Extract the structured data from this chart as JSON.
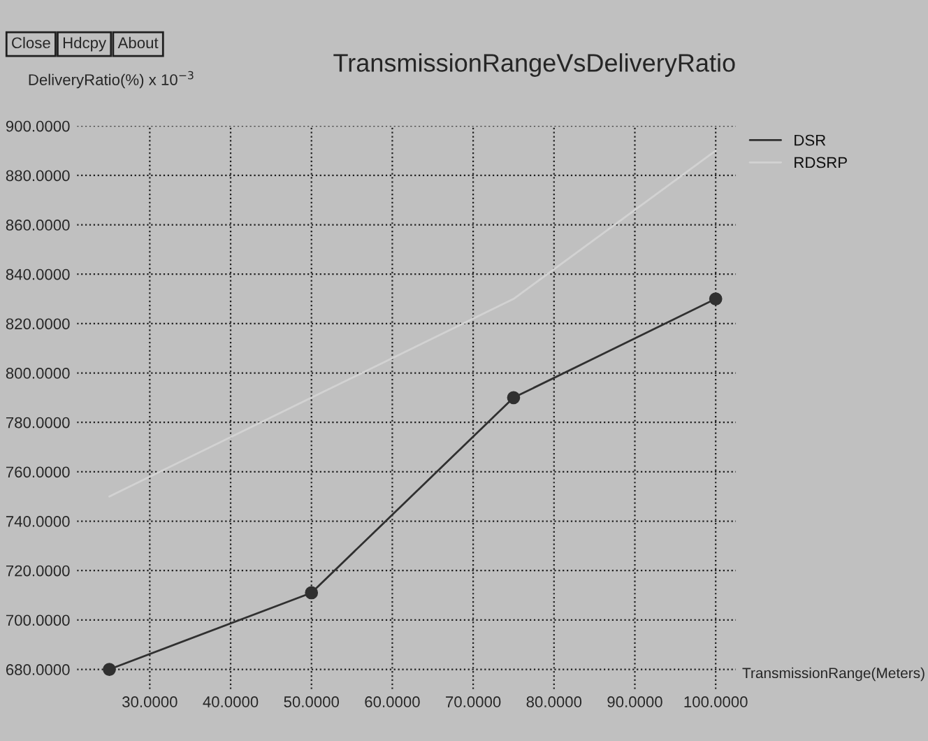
{
  "chart_data": {
    "type": "line",
    "title": "TransmissionRangeVsDeliveryRatio",
    "xlabel": "TransmissionRange(Meters)",
    "ylabel": "DeliveryRatio(%) x 10$^{−3}$",
    "annotations": [
      "Close",
      "Hdcpy",
      "About"
    ],
    "x": [
      25,
      50,
      75,
      100
    ],
    "series": [
      {
        "name": "DSR",
        "color": "#303030",
        "values": [
          680,
          711,
          790,
          830
        ],
        "marker": "circle"
      },
      {
        "name": "RDSRP",
        "color": "#d2d2d2",
        "values": [
          750,
          790,
          830,
          890
        ],
        "marker": "none"
      }
    ],
    "xlim": [
      21,
      102.5
    ],
    "ylim": [
      672,
      900
    ],
    "xticks": [
      {
        "value": 30,
        "label": "30.0000"
      },
      {
        "value": 40,
        "label": "40.0000"
      },
      {
        "value": 50,
        "label": "50.0000"
      },
      {
        "value": 60,
        "label": "60.0000"
      },
      {
        "value": 70,
        "label": "70.0000"
      },
      {
        "value": 80,
        "label": "80.0000"
      },
      {
        "value": 90,
        "label": "90.0000"
      },
      {
        "value": 100,
        "label": "100.0000"
      }
    ],
    "yticks": [
      {
        "value": 680,
        "label": "680.0000"
      },
      {
        "value": 700,
        "label": "700.0000"
      },
      {
        "value": 720,
        "label": "720.0000"
      },
      {
        "value": 740,
        "label": "740.0000"
      },
      {
        "value": 760,
        "label": "760.0000"
      },
      {
        "value": 780,
        "label": "780.0000"
      },
      {
        "value": 800,
        "label": "800.0000"
      },
      {
        "value": 820,
        "label": "820.0000"
      },
      {
        "value": 840,
        "label": "840.0000"
      },
      {
        "value": 860,
        "label": "860.0000"
      },
      {
        "value": 880,
        "label": "880.0000"
      },
      {
        "value": 900,
        "label": "900.0000"
      }
    ],
    "grid": true,
    "legend": "top right",
    "line_style": "solid"
  }
}
